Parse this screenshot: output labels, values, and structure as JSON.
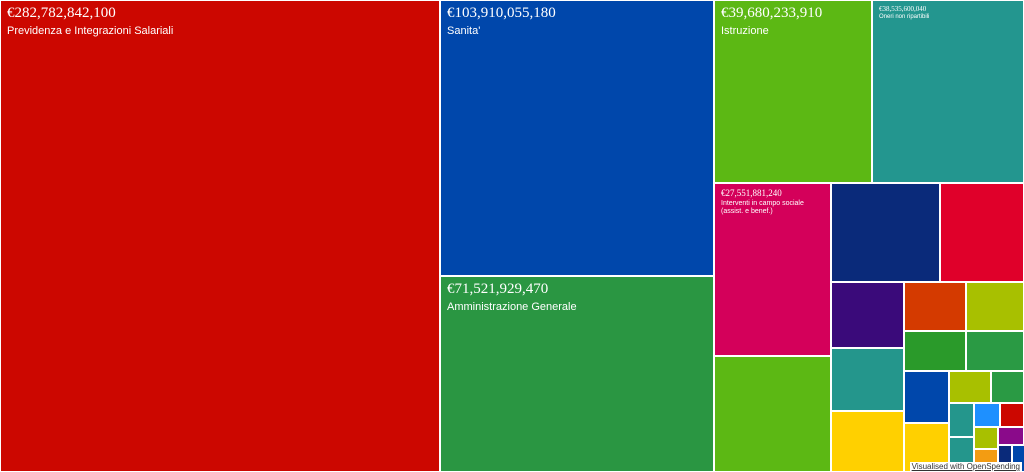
{
  "chart_data": {
    "type": "treemap",
    "categories": [
      "Previdenza e Integrazioni Salariali",
      "Sanita'",
      "Amministrazione Generale",
      "Istruzione",
      "Oneri non ripartibili",
      "Interventi in campo sociale (assist. e benef.)",
      null,
      null,
      null,
      null,
      null,
      null,
      null,
      null,
      null,
      null,
      null,
      null,
      null,
      null,
      null,
      null,
      null,
      null,
      null,
      null,
      null,
      null,
      null
    ],
    "values": [
      282782842100,
      103910055180,
      71521929470,
      39680233910,
      38535600040,
      27551881240,
      18500000000,
      14700000000,
      11300000000,
      6600000000,
      6300000000,
      6100000000,
      4100000000,
      3900000000,
      3400000000,
      3200000000,
      3200000000,
      3000000000,
      1800000000,
      1400000000,
      1200000000,
      1200000000,
      850000000,
      800000000,
      750000000,
      700000000,
      600000000,
      500000000,
      400000000
    ],
    "value_labels": [
      "€282,782,842,100",
      "€103,910,055,180",
      "€71,521,929,470",
      "€39,680,233,910",
      "€38,535,600,040",
      "€27,551,881,240",
      null,
      null,
      null,
      null,
      null,
      null,
      null,
      null,
      null,
      null,
      null,
      null,
      null,
      null,
      null,
      null,
      null,
      null,
      null,
      null,
      null,
      null,
      null
    ],
    "colors": [
      "#cc0700",
      "#0047ab",
      "#2a9642",
      "#5cb814",
      "#23968f",
      "#d4005a",
      "#5cb814",
      "#0a2a7a",
      "#e0002a",
      "#3a0a7a",
      "#24968c",
      "#ffd000",
      "#d43a00",
      "#a8c000",
      "#2a9a2a",
      "#2a9a44",
      "#0047ab",
      "#ffd000",
      "#a8c000",
      "#2a9a44",
      "#24968c",
      "#24968c",
      "#1e90ff",
      "#cc0700",
      "#f39c12",
      "#a8c000",
      "#8a0a8a",
      "#0a2a7a",
      "#0047ab"
    ]
  },
  "footer": "Visualised with OpenSpending"
}
